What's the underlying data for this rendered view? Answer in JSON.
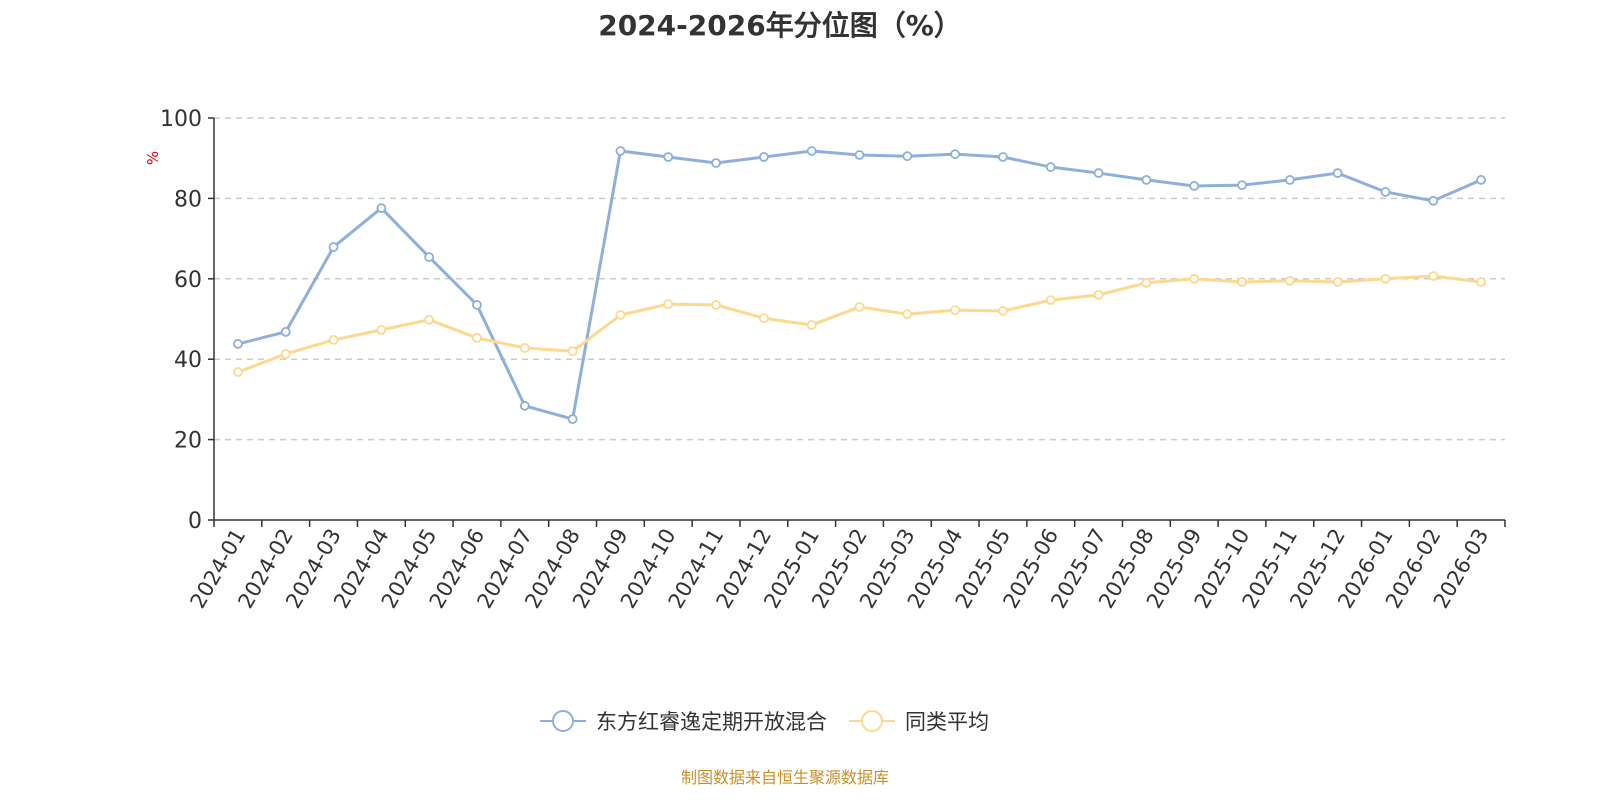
{
  "chart_data": {
    "type": "line",
    "title": "2024-2026年分位图（%）",
    "ylabel": "%",
    "xlabel": "",
    "ylim": [
      0,
      100
    ],
    "yticks": [
      0,
      20,
      40,
      60,
      80,
      100
    ],
    "grid": true,
    "legend_position": "bottom",
    "categories": [
      "2024-01",
      "2024-02",
      "2024-03",
      "2024-04",
      "2024-05",
      "2024-06",
      "2024-07",
      "2024-08",
      "2024-09",
      "2024-10",
      "2024-11",
      "2024-12",
      "2025-01",
      "2025-02",
      "2025-03",
      "2025-04",
      "2025-05",
      "2025-06",
      "2025-07",
      "2025-08",
      "2025-09",
      "2025-10",
      "2025-11",
      "2025-12",
      "2026-01",
      "2026-02",
      "2026-03"
    ],
    "series": [
      {
        "name": "东方红睿逸定期开放混合",
        "color": "#8eb0dc",
        "values": [
          43.8,
          46.8,
          67.9,
          77.6,
          65.4,
          53.5,
          28.4,
          25.1,
          91.8,
          90.3,
          88.8,
          90.3,
          91.8,
          90.8,
          90.5,
          91.0,
          90.3,
          87.8,
          86.3,
          84.6,
          83.1,
          83.3,
          84.6,
          86.3,
          81.6,
          79.4,
          84.6
        ]
      },
      {
        "name": "同类平均",
        "color": "#fdd88e",
        "values": [
          36.8,
          41.3,
          44.8,
          47.3,
          49.8,
          45.3,
          42.8,
          42.0,
          51.0,
          53.7,
          53.5,
          50.2,
          48.5,
          53.0,
          51.2,
          52.2,
          52.0,
          54.7,
          56.0,
          59.0,
          60.0,
          59.2,
          59.5,
          59.2,
          60.0,
          60.7,
          59.2
        ]
      }
    ]
  },
  "source": "制图数据来自恒生聚源数据库"
}
